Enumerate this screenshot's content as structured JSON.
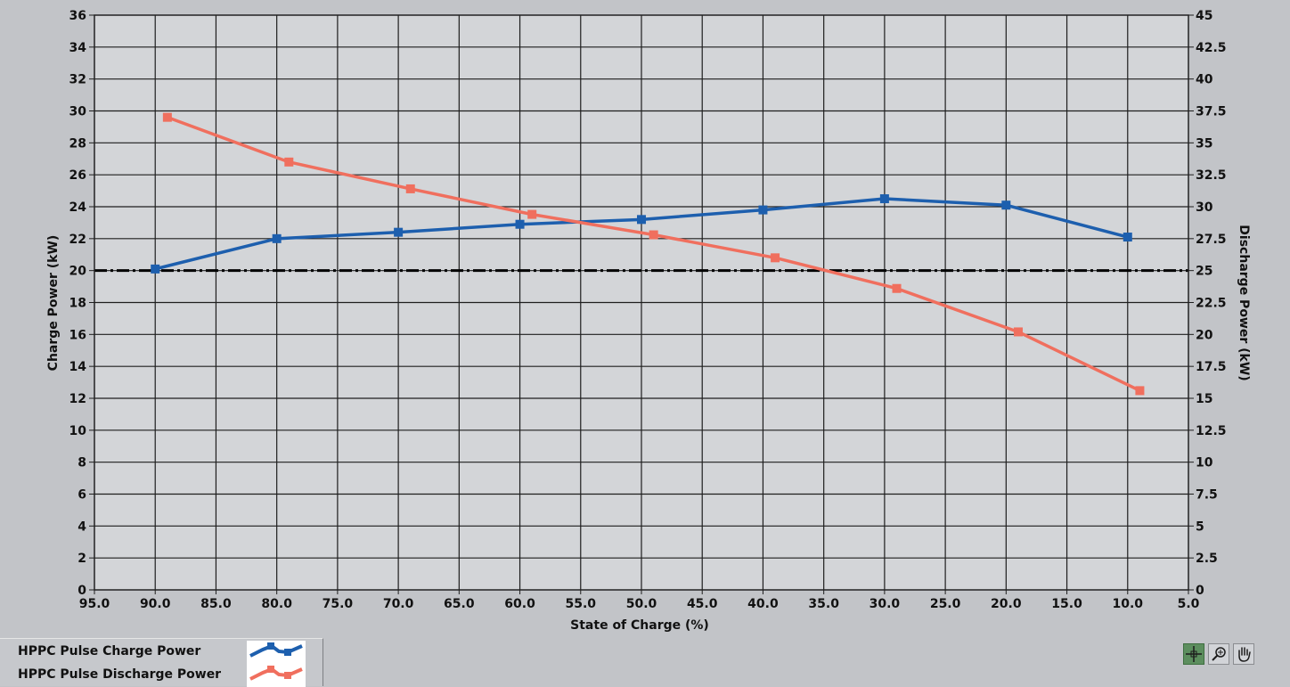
{
  "chart_data": {
    "type": "line",
    "xlabel": "State of Charge (%)",
    "ylabel_left": "Charge Power (kW)",
    "ylabel_right": "Discharge Power (kW)",
    "xlim": [
      95.0,
      5.0
    ],
    "ylim_left": [
      0,
      36
    ],
    "ylim_right": [
      0,
      45
    ],
    "x_ticks": [
      "95.0",
      "90.0",
      "85.0",
      "80.0",
      "75.0",
      "70.0",
      "65.0",
      "60.0",
      "55.0",
      "50.0",
      "45.0",
      "40.0",
      "35.0",
      "30.0",
      "25.0",
      "20.0",
      "15.0",
      "10.0",
      "5.0"
    ],
    "y_left_ticks": [
      "0",
      "2",
      "4",
      "6",
      "8",
      "10",
      "12",
      "14",
      "16",
      "18",
      "20",
      "22",
      "24",
      "26",
      "28",
      "30",
      "32",
      "34",
      "36"
    ],
    "y_right_ticks": [
      "0",
      "2.5",
      "5",
      "7.5",
      "10",
      "12.5",
      "15",
      "17.5",
      "20",
      "22.5",
      "25",
      "27.5",
      "30",
      "32.5",
      "35",
      "37.5",
      "40",
      "42.5",
      "45"
    ],
    "grid": true,
    "reference_line": {
      "axis": "left",
      "y": 20,
      "style": "dash-dot"
    },
    "series": [
      {
        "name": "HPPC Pulse Charge Power",
        "axis": "left",
        "color": "#1d5fae",
        "x": [
          90,
          80,
          70,
          60,
          50,
          40,
          30,
          20,
          10
        ],
        "y": [
          20.1,
          22.0,
          22.4,
          22.9,
          23.2,
          23.8,
          24.5,
          24.1,
          22.1
        ]
      },
      {
        "name": "HPPC Pulse Discharge Power",
        "axis": "right",
        "color": "#f06f5e",
        "x": [
          89,
          79,
          69,
          59,
          49,
          39,
          29,
          19,
          9
        ],
        "y": [
          37.0,
          33.5,
          31.4,
          29.4,
          27.8,
          26.0,
          23.6,
          20.2,
          15.6
        ]
      }
    ]
  },
  "legend": {
    "items": [
      {
        "label": "HPPC Pulse Charge Power",
        "color": "#1d5fae"
      },
      {
        "label": "HPPC Pulse Discharge Power",
        "color": "#f06f5e"
      }
    ]
  },
  "toolbar": {
    "tools": [
      {
        "icon": "cursor-crosshair-icon",
        "active": true
      },
      {
        "icon": "zoom-icon",
        "active": false
      },
      {
        "icon": "pan-hand-icon",
        "active": false
      }
    ]
  }
}
